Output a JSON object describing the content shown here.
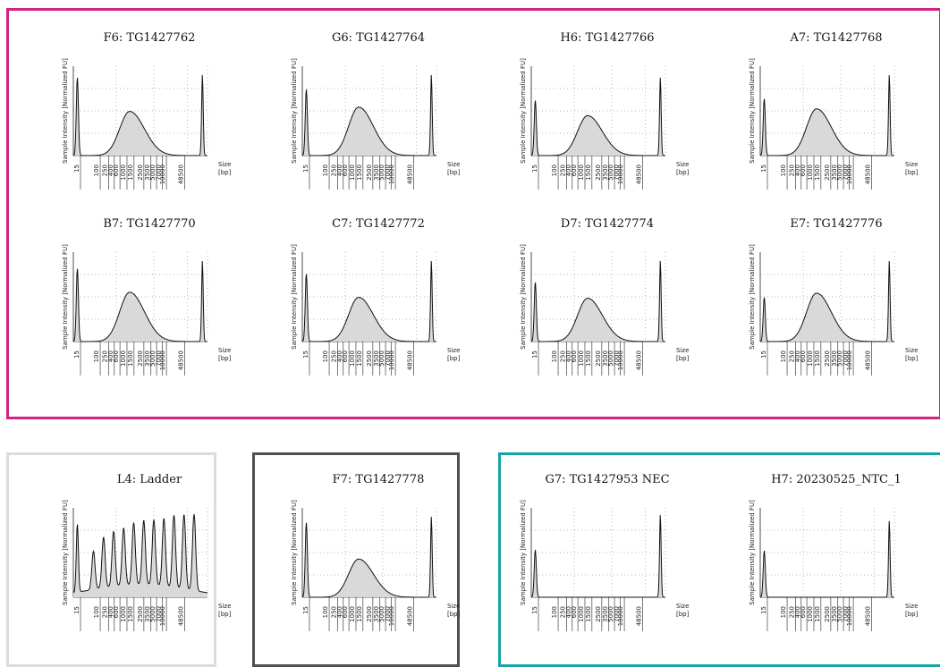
{
  "groups": [
    {
      "name": "magenta",
      "color": "#d3237f"
    },
    {
      "name": "ladder",
      "color": "#dcdcdc"
    },
    {
      "name": "dark",
      "color": "#4d4f53"
    },
    {
      "name": "teal",
      "color": "#17a4a6"
    }
  ],
  "common": {
    "ylabel": "Sample Intensity [Normalized FU]",
    "xlabel_line1": "Size",
    "xlabel_line2": "[bp]",
    "x_ticks": [
      "15",
      "100",
      "250",
      "400",
      "600",
      "1000",
      "1500",
      "2500",
      "3500",
      "5000",
      "7000",
      "10000",
      "48500"
    ],
    "grid": "dotted"
  },
  "chart_data": [
    {
      "type": "area",
      "title": "F6: TG1427762",
      "group": "magenta",
      "lower_marker": 0.92,
      "smear_center": 0.42,
      "smear_width": 0.1,
      "smear_height": 0.52,
      "upper_marker": 0.95
    },
    {
      "type": "area",
      "title": "G6: TG1427764",
      "group": "magenta",
      "lower_marker": 0.78,
      "smear_center": 0.42,
      "smear_width": 0.1,
      "smear_height": 0.57,
      "upper_marker": 0.95
    },
    {
      "type": "area",
      "title": "H6: TG1427766",
      "group": "magenta",
      "lower_marker": 0.65,
      "smear_center": 0.42,
      "smear_width": 0.1,
      "smear_height": 0.47,
      "upper_marker": 0.92
    },
    {
      "type": "area",
      "title": "A7: TG1427768",
      "group": "magenta",
      "lower_marker": 0.67,
      "smear_center": 0.42,
      "smear_width": 0.1,
      "smear_height": 0.55,
      "upper_marker": 0.95
    },
    {
      "type": "area",
      "title": "B7: TG1427770",
      "group": "magenta",
      "lower_marker": 0.86,
      "smear_center": 0.42,
      "smear_width": 0.1,
      "smear_height": 0.58,
      "upper_marker": 0.95
    },
    {
      "type": "area",
      "title": "C7: TG1427772",
      "group": "magenta",
      "lower_marker": 0.8,
      "smear_center": 0.42,
      "smear_width": 0.1,
      "smear_height": 0.52,
      "upper_marker": 0.95
    },
    {
      "type": "area",
      "title": "D7: TG1427774",
      "group": "magenta",
      "lower_marker": 0.7,
      "smear_center": 0.42,
      "smear_width": 0.1,
      "smear_height": 0.51,
      "upper_marker": 0.95
    },
    {
      "type": "area",
      "title": "E7: TG1427776",
      "group": "magenta",
      "lower_marker": 0.52,
      "smear_center": 0.42,
      "smear_width": 0.1,
      "smear_height": 0.57,
      "upper_marker": 0.95
    },
    {
      "type": "area",
      "title": "L4: Ladder",
      "group": "ladder",
      "lower_marker": 0.8,
      "ladder_peaks": [
        0.45,
        0.6,
        0.65,
        0.68,
        0.73,
        0.76,
        0.77,
        0.8,
        0.85,
        0.88,
        0.9
      ]
    },
    {
      "type": "area",
      "title": "F7: TG1427778",
      "group": "dark",
      "lower_marker": 0.88,
      "smear_center": 0.42,
      "smear_width": 0.1,
      "smear_height": 0.45,
      "upper_marker": 0.95
    },
    {
      "type": "area",
      "title": "G7: TG1427953 NEC",
      "group": "teal",
      "lower_marker": 0.56,
      "smear_height": 0,
      "upper_marker": 0.97
    },
    {
      "type": "area",
      "title": "H7: 20230525_NTC_1",
      "group": "teal",
      "lower_marker": 0.55,
      "smear_height": 0,
      "upper_marker": 0.9
    }
  ]
}
